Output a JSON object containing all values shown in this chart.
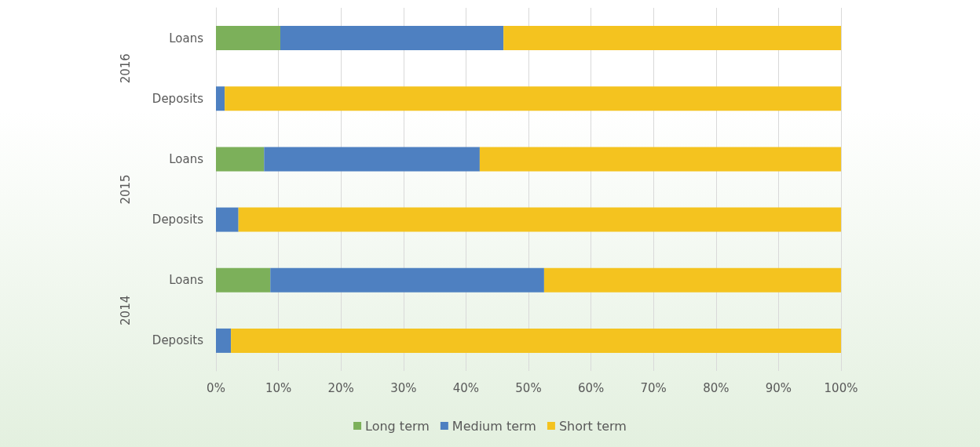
{
  "chart_data": {
    "type": "bar",
    "orientation": "horizontal",
    "stacked": true,
    "categories": [
      "Loans",
      "Deposits",
      "Loans",
      "Deposits",
      "Loans",
      "Deposits"
    ],
    "annotations": [
      "2016",
      "2015",
      "2014"
    ],
    "series": [
      {
        "name": "Long term",
        "color": "#7cb05a",
        "values": [
          10.3,
          0,
          7.7,
          0,
          8.7,
          0
        ]
      },
      {
        "name": "Medium term",
        "color": "#4e80c1",
        "values": [
          35.7,
          1.4,
          34.5,
          3.6,
          43.8,
          2.4
        ]
      },
      {
        "name": "Short term",
        "color": "#f4c31f",
        "values": [
          54.0,
          98.6,
          57.8,
          96.4,
          47.5,
          97.6
        ]
      }
    ],
    "xlim": [
      0,
      100
    ],
    "xticks": [
      {
        "value": 0,
        "label": "0%"
      },
      {
        "value": 10,
        "label": "10%"
      },
      {
        "value": 20,
        "label": "20%"
      },
      {
        "value": 30,
        "label": "30%"
      },
      {
        "value": 40,
        "label": "40%"
      },
      {
        "value": 50,
        "label": "50%"
      },
      {
        "value": 60,
        "label": "60%"
      },
      {
        "value": 70,
        "label": "70%"
      },
      {
        "value": 80,
        "label": "80%"
      },
      {
        "value": 90,
        "label": "90%"
      },
      {
        "value": 100,
        "label": "100%"
      }
    ],
    "grid": "x",
    "legend": "bottom"
  }
}
